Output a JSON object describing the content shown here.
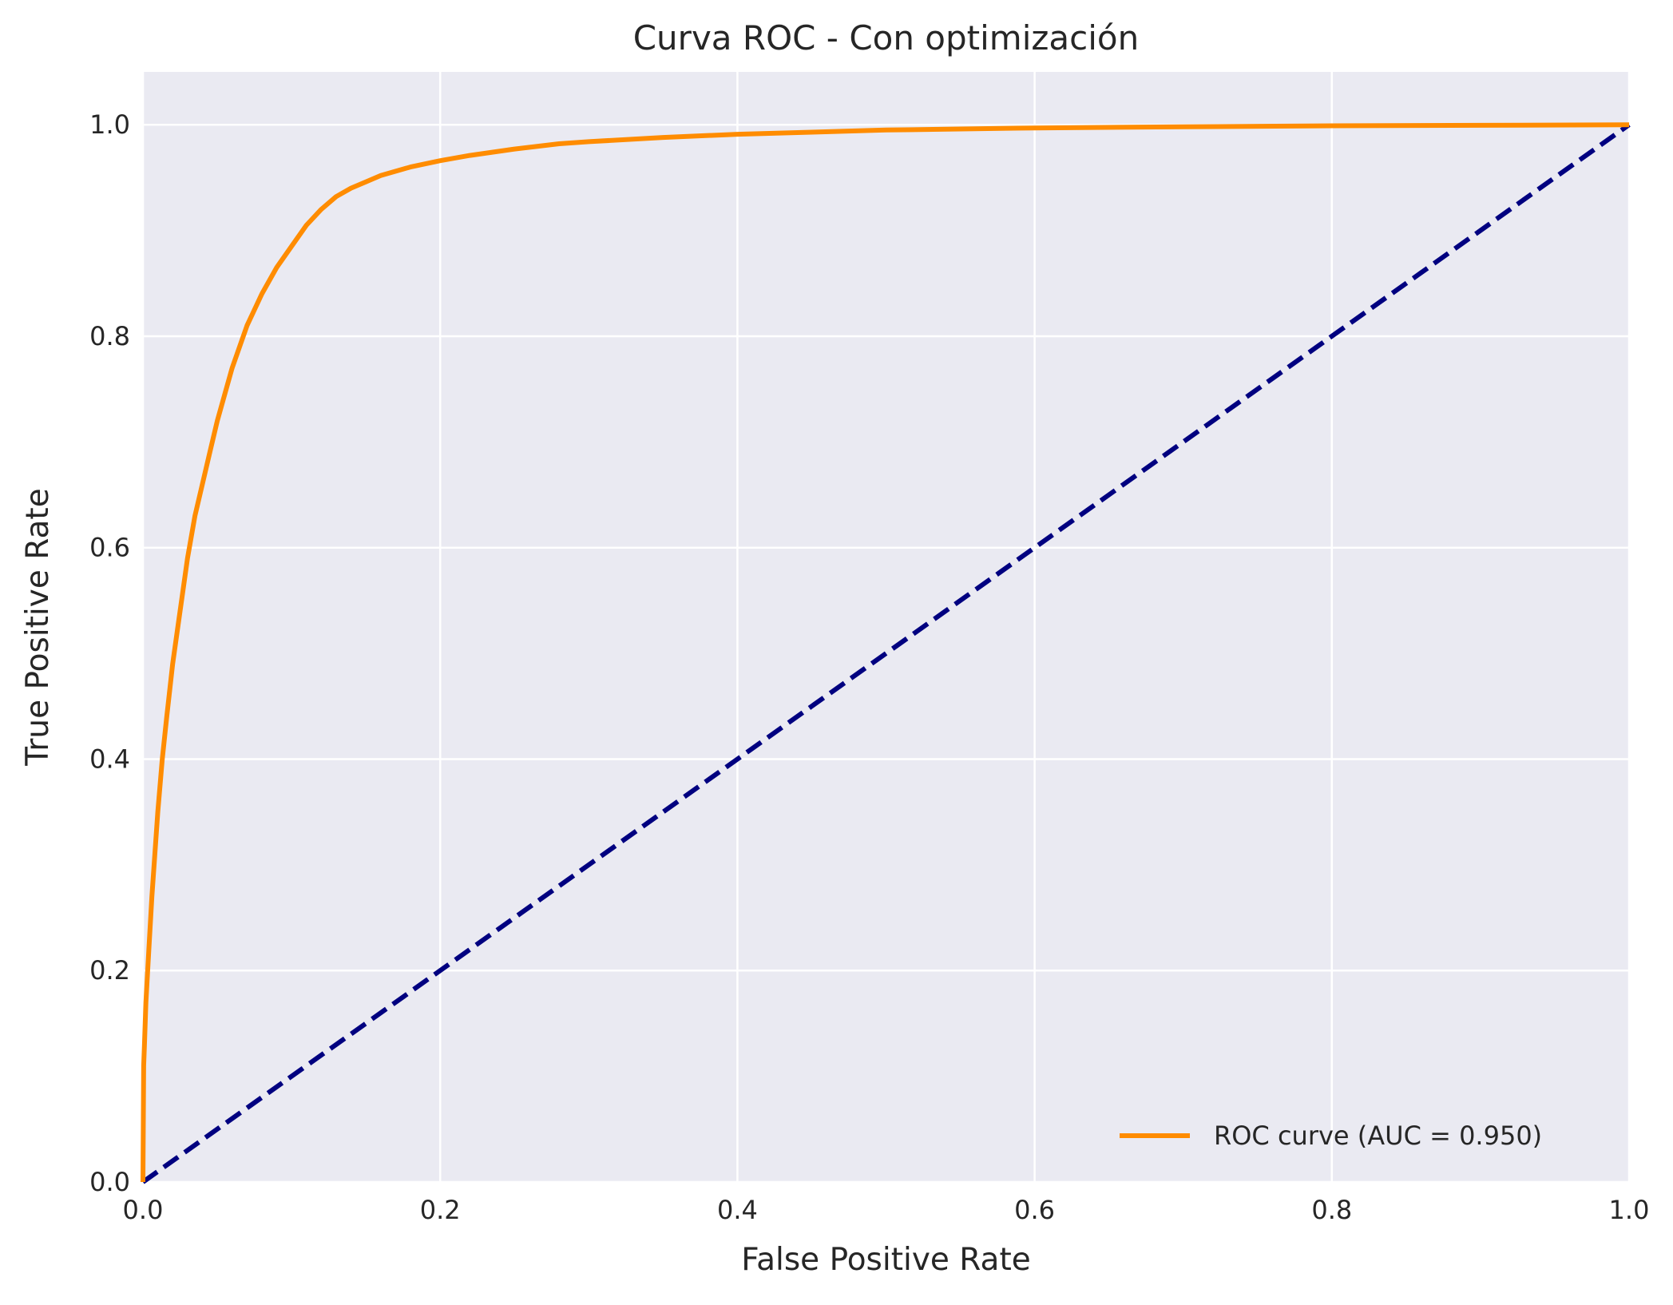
{
  "chart_data": {
    "type": "line",
    "title": "Curva ROC - Con optimización",
    "xlabel": "False Positive Rate",
    "ylabel": "True Positive Rate",
    "xlim": [
      0.0,
      1.0
    ],
    "ylim": [
      0.0,
      1.05
    ],
    "xticks": [
      "0.0",
      "0.2",
      "0.4",
      "0.6",
      "0.8",
      "1.0"
    ],
    "yticks": [
      "0.0",
      "0.2",
      "0.4",
      "0.6",
      "0.8",
      "1.0"
    ],
    "grid": true,
    "legend": {
      "position": "lower-right"
    },
    "background": "#eaeaf2",
    "series": [
      {
        "name": "ROC curve (AUC = 0.950)",
        "color": "#ff8c00",
        "style": "solid",
        "x": [
          0.0,
          0.0005,
          0.001,
          0.002,
          0.004,
          0.006,
          0.008,
          0.01,
          0.013,
          0.016,
          0.02,
          0.025,
          0.03,
          0.035,
          0.04,
          0.045,
          0.05,
          0.055,
          0.06,
          0.065,
          0.07,
          0.075,
          0.08,
          0.09,
          0.1,
          0.11,
          0.12,
          0.13,
          0.14,
          0.15,
          0.16,
          0.18,
          0.2,
          0.22,
          0.25,
          0.28,
          0.3,
          0.35,
          0.4,
          0.45,
          0.5,
          0.6,
          0.7,
          0.8,
          0.9,
          1.0
        ],
        "y": [
          0.0,
          0.11,
          0.13,
          0.17,
          0.22,
          0.27,
          0.31,
          0.35,
          0.4,
          0.44,
          0.49,
          0.54,
          0.59,
          0.63,
          0.66,
          0.69,
          0.72,
          0.745,
          0.77,
          0.79,
          0.81,
          0.825,
          0.84,
          0.865,
          0.885,
          0.905,
          0.92,
          0.932,
          0.94,
          0.946,
          0.952,
          0.96,
          0.966,
          0.971,
          0.977,
          0.982,
          0.984,
          0.988,
          0.991,
          0.993,
          0.995,
          0.997,
          0.998,
          0.999,
          0.9995,
          1.0
        ]
      },
      {
        "name": "",
        "color": "#000080",
        "style": "dashed",
        "x": [
          0.0,
          1.0
        ],
        "y": [
          0.0,
          1.0
        ]
      }
    ]
  }
}
